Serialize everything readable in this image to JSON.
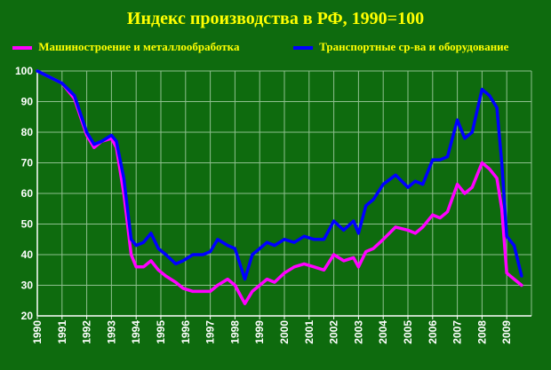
{
  "title": "Индекс производства в РФ, 1990=100",
  "colors": {
    "background": "#0e6b0e",
    "title": "#ffff00",
    "grid": "#8fbf8f",
    "axis": "#ffffff"
  },
  "chart_data": {
    "type": "line",
    "title": "Индекс производства в РФ, 1990=100",
    "xlabel": "",
    "ylabel": "",
    "xlim": [
      1990,
      2010
    ],
    "ylim": [
      20,
      100
    ],
    "x_ticks": [
      "1990",
      "1991",
      "1992",
      "1993",
      "1994",
      "1995",
      "1996",
      "1997",
      "1998",
      "1999",
      "2000",
      "2001",
      "2002",
      "2003",
      "2004",
      "2005",
      "2006",
      "2007",
      "2008",
      "2009"
    ],
    "y_ticks": [
      "20",
      "30",
      "40",
      "50",
      "60",
      "70",
      "80",
      "90",
      "100"
    ],
    "grid": true,
    "legend_position": "top",
    "series": [
      {
        "name": "Машиностроение и металлообработка",
        "color": "#ff00ff",
        "x": [
          1990,
          1990.5,
          1991,
          1991.5,
          1992,
          1992.3,
          1992.6,
          1993,
          1993.2,
          1993.5,
          1993.8,
          1994,
          1994.3,
          1994.6,
          1994.9,
          1995.2,
          1995.6,
          1995.9,
          1996.3,
          1996.7,
          1997.0,
          1997.3,
          1997.7,
          1998.0,
          1998.4,
          1998.7,
          1999.0,
          1999.3,
          1999.6,
          2000.0,
          2000.4,
          2000.8,
          2001.2,
          2001.6,
          2002.0,
          2002.4,
          2002.8,
          2003.0,
          2003.3,
          2003.6,
          2004.0,
          2004.5,
          2005.0,
          2005.3,
          2005.6,
          2006.0,
          2006.3,
          2006.6,
          2007.0,
          2007.3,
          2007.6,
          2008.0,
          2008.3,
          2008.6,
          2008.8,
          2009.0,
          2009.3,
          2009.6
        ],
        "values": [
          100,
          98,
          96,
          91,
          79,
          75,
          77,
          78,
          75,
          60,
          40,
          36,
          36,
          38,
          35,
          33,
          31,
          29,
          28,
          28,
          28,
          30,
          32,
          30,
          24,
          28,
          30,
          32,
          31,
          34,
          36,
          37,
          36,
          35,
          40,
          38,
          39,
          36,
          41,
          42,
          45,
          49,
          48,
          47,
          49,
          53,
          52,
          54,
          63,
          60,
          62,
          70,
          68,
          65,
          55,
          34,
          32,
          30
        ]
      },
      {
        "name": "Транспортные ср-ва и оборудование",
        "color": "#0000ff",
        "x": [
          1990,
          1990.5,
          1991,
          1991.5,
          1992,
          1992.3,
          1992.6,
          1993,
          1993.2,
          1993.5,
          1993.8,
          1994,
          1994.3,
          1994.6,
          1994.9,
          1995.2,
          1995.6,
          1995.9,
          1996.3,
          1996.7,
          1997.0,
          1997.3,
          1997.7,
          1998.0,
          1998.4,
          1998.7,
          1999.0,
          1999.3,
          1999.6,
          2000.0,
          2000.4,
          2000.8,
          2001.2,
          2001.6,
          2002.0,
          2002.4,
          2002.8,
          2003.0,
          2003.3,
          2003.6,
          2004.0,
          2004.5,
          2005.0,
          2005.3,
          2005.6,
          2006.0,
          2006.3,
          2006.6,
          2007.0,
          2007.3,
          2007.6,
          2008.0,
          2008.3,
          2008.6,
          2008.8,
          2009.0,
          2009.3,
          2009.6
        ],
        "values": [
          100,
          98,
          96,
          92,
          80,
          76,
          77,
          79,
          77,
          65,
          45,
          43,
          44,
          47,
          42,
          40,
          37,
          38,
          40,
          40,
          41,
          45,
          43,
          42,
          32,
          40,
          42,
          44,
          43,
          45,
          44,
          46,
          45,
          45,
          51,
          48,
          51,
          47,
          56,
          58,
          63,
          66,
          62,
          64,
          63,
          71,
          71,
          72,
          84,
          78,
          80,
          94,
          92,
          88,
          70,
          46,
          43,
          33
        ]
      }
    ]
  }
}
